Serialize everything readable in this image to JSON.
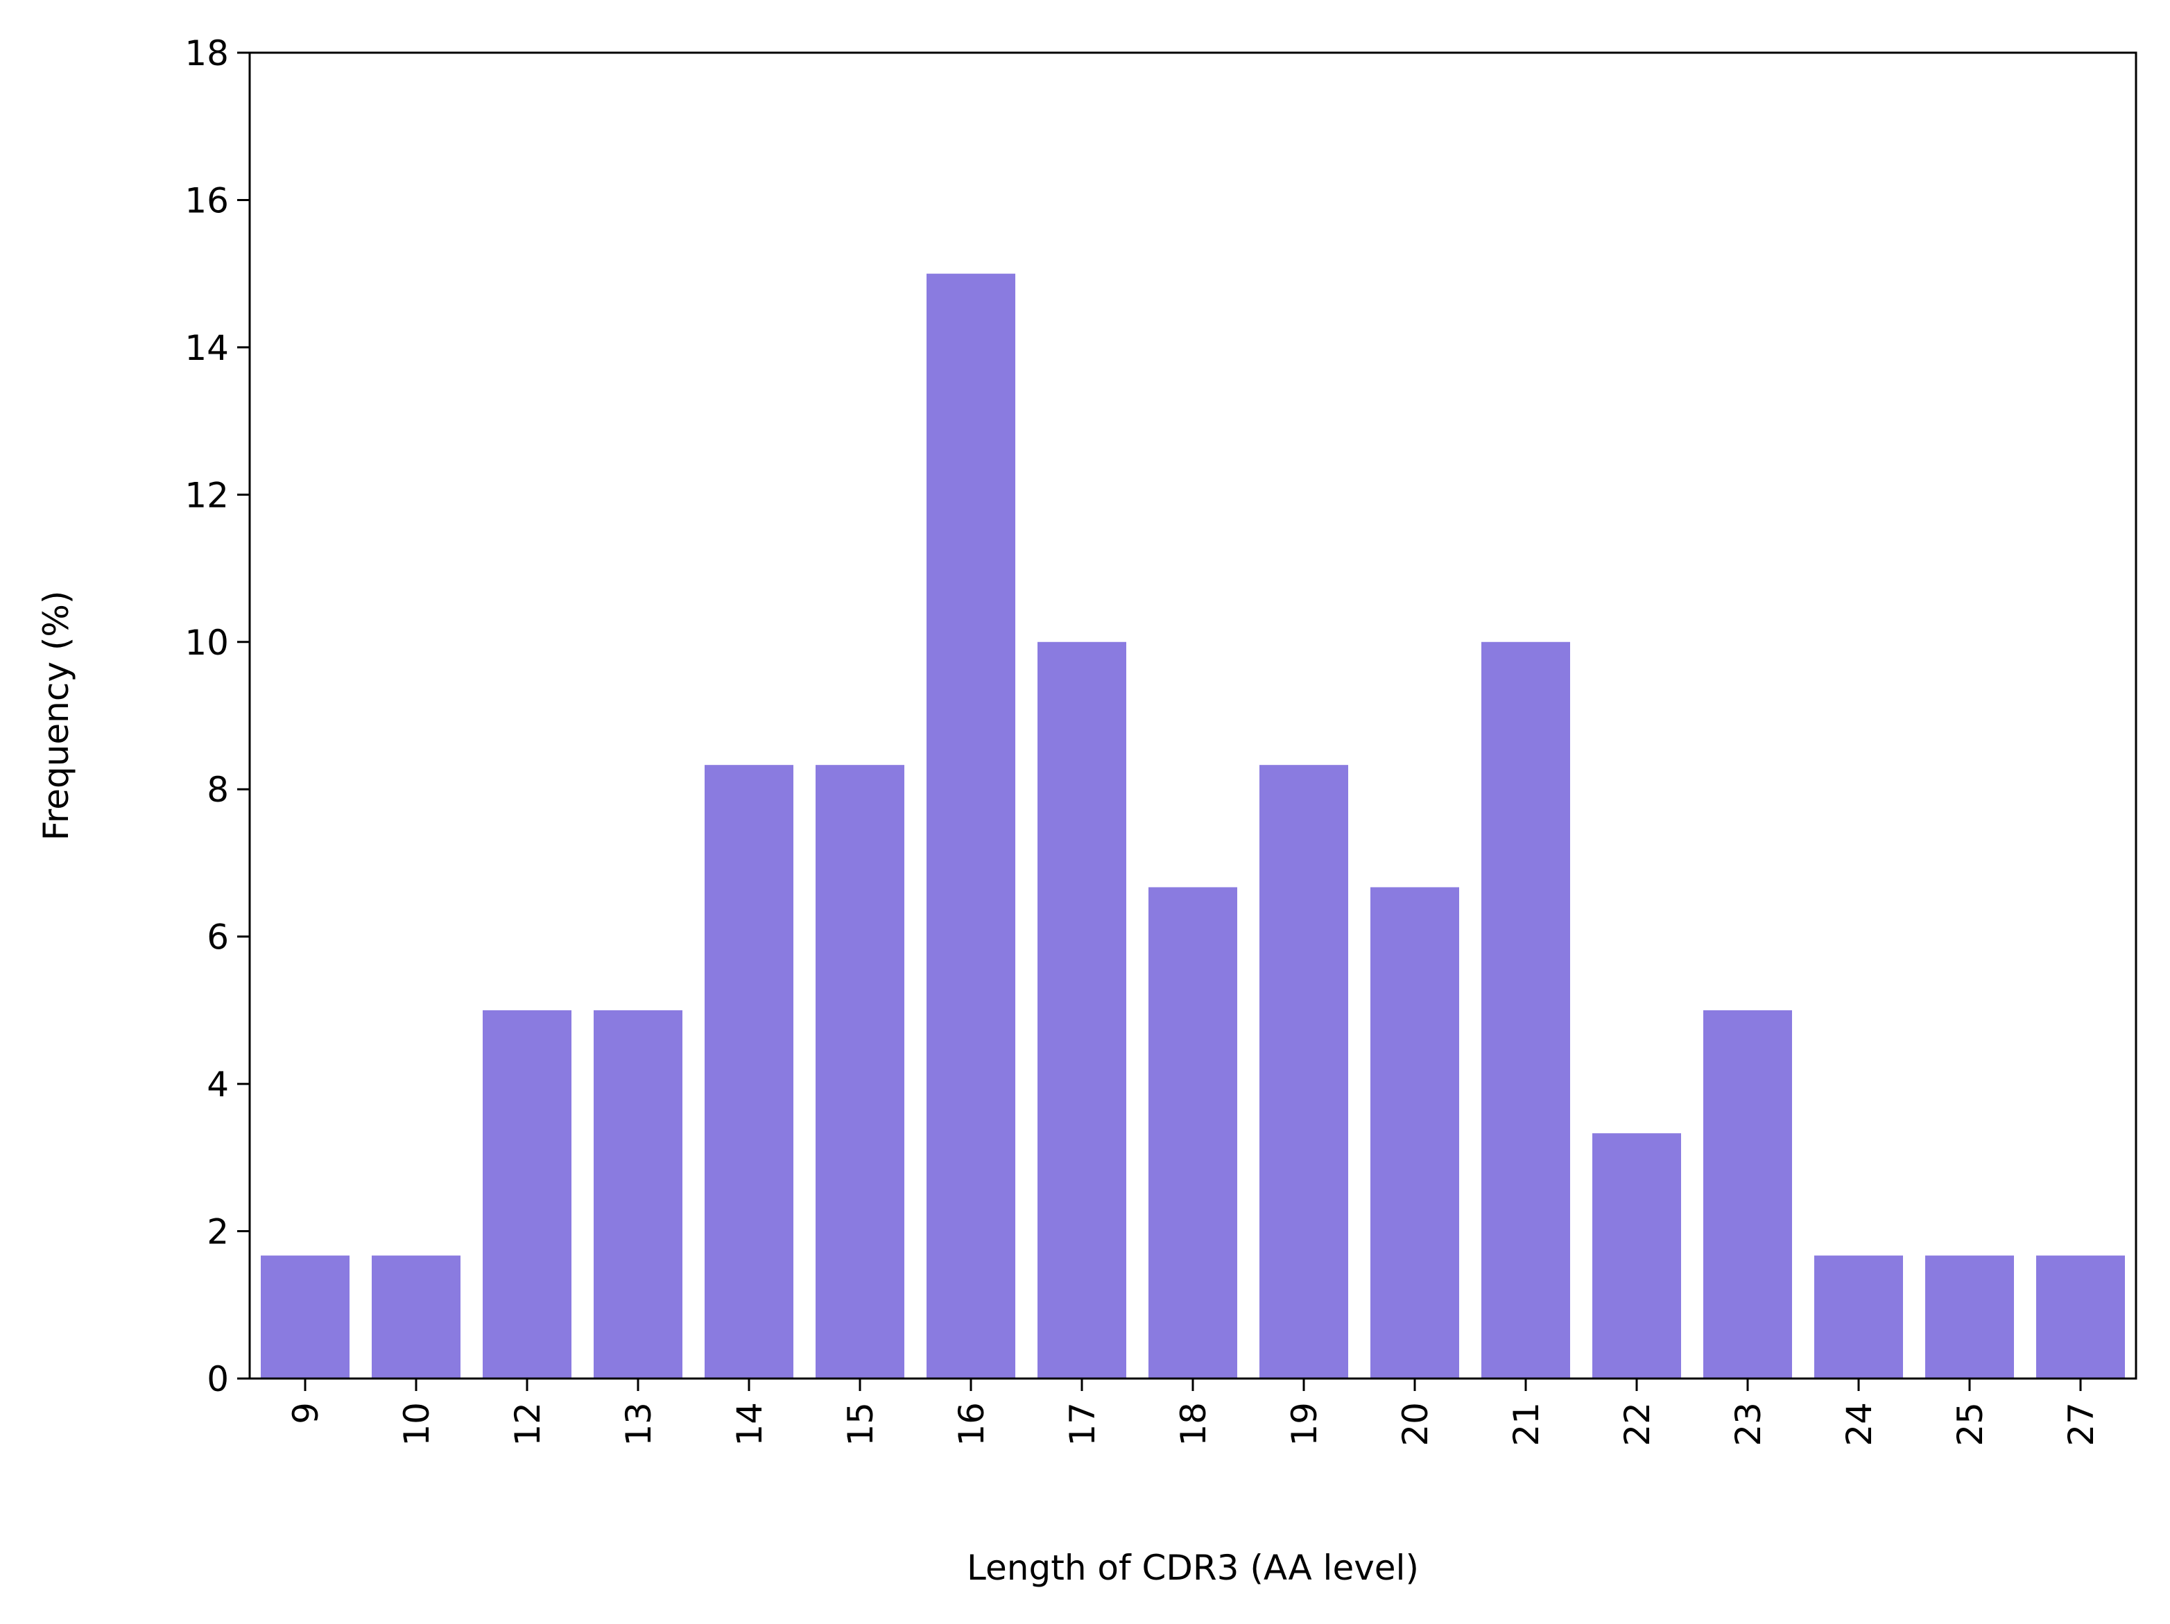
{
  "chart_data": {
    "type": "bar",
    "title": "",
    "xlabel": "Length of CDR3 (AA level)",
    "ylabel": "Frequency (%)",
    "categories": [
      "9",
      "10",
      "12",
      "13",
      "14",
      "15",
      "16",
      "17",
      "18",
      "19",
      "20",
      "21",
      "22",
      "23",
      "24",
      "25",
      "27"
    ],
    "values": [
      1.67,
      1.67,
      5.0,
      5.0,
      8.33,
      8.33,
      15.0,
      10.0,
      6.67,
      8.33,
      6.67,
      10.0,
      3.33,
      5.0,
      1.67,
      1.67,
      1.67
    ],
    "ylim": [
      0,
      18
    ],
    "yticks": [
      "0",
      "2",
      "4",
      "6",
      "8",
      "10",
      "12",
      "14",
      "16",
      "18"
    ],
    "grid": false,
    "bar_color": "#8a7be0"
  }
}
